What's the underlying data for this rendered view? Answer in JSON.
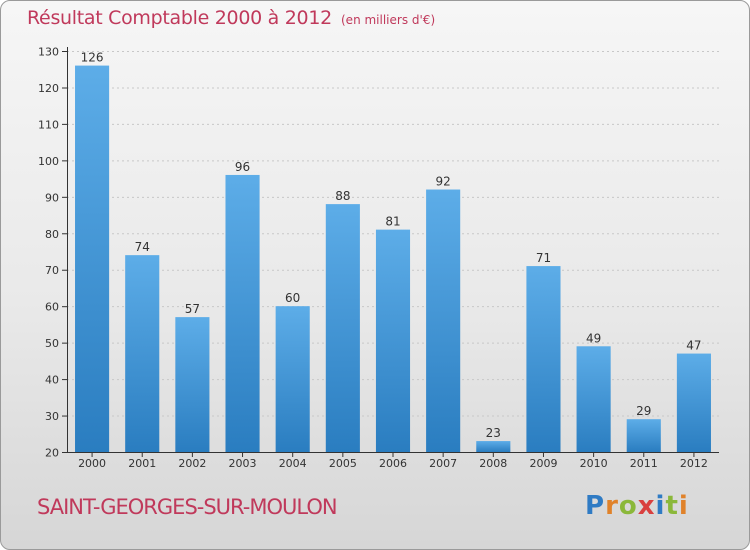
{
  "header": {
    "title": "Résultat Comptable 2000 à 2012",
    "unit": "(en milliers d'€)"
  },
  "footer": {
    "commune": "SAINT-GEORGES-SUR-MOULON",
    "logo": "Proxiti"
  },
  "colors": {
    "bar_light": "#5dade8",
    "bar_dark": "#2a7dc0",
    "title": "#c0395b",
    "axis": "#333333",
    "grid": "#c8c8c8"
  },
  "chart_data": {
    "type": "bar",
    "title": "Résultat Comptable 2000 à 2012",
    "subtitle": "(en milliers d'€)",
    "xlabel": "",
    "ylabel": "",
    "categories": [
      "2000",
      "2001",
      "2002",
      "2003",
      "2004",
      "2005",
      "2006",
      "2007",
      "2008",
      "2009",
      "2010",
      "2011",
      "2012"
    ],
    "values": [
      126,
      74,
      57,
      96,
      60,
      88,
      81,
      92,
      23,
      71,
      49,
      29,
      47
    ],
    "ylim": [
      20,
      130
    ],
    "yticks": [
      20,
      30,
      40,
      50,
      60,
      70,
      80,
      90,
      100,
      110,
      120,
      130
    ],
    "grid": true,
    "data_labels": true
  }
}
